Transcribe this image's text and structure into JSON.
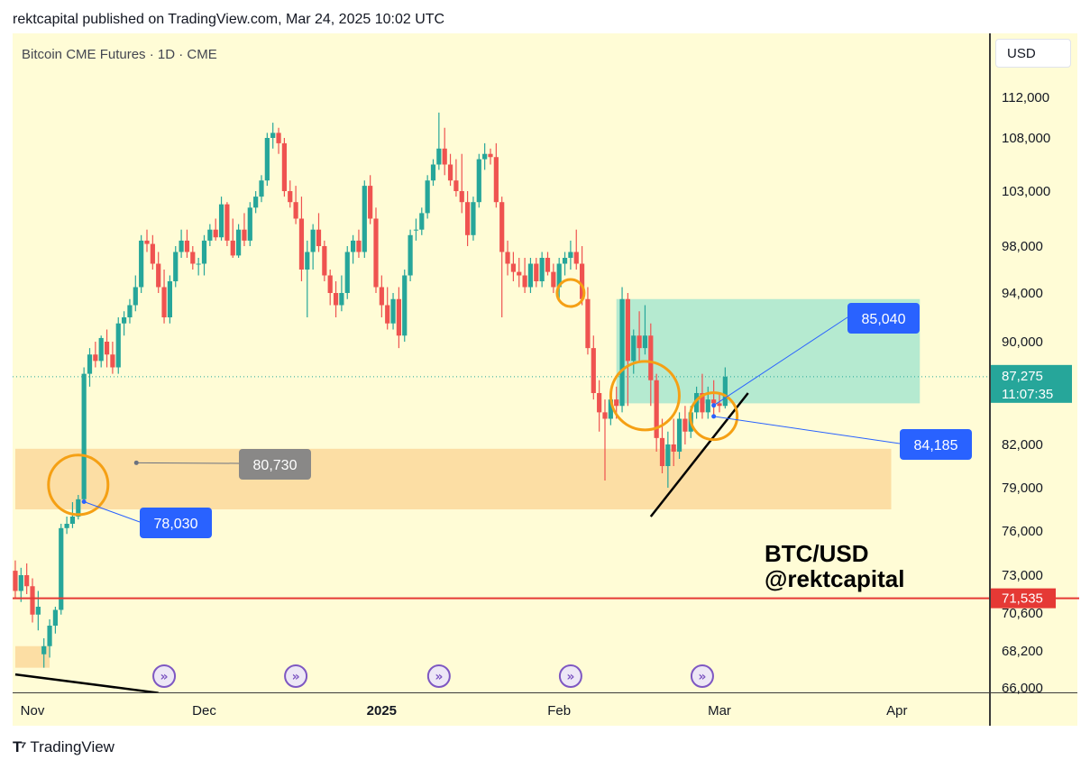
{
  "header": {
    "text": "rektcapital published on TradingView.com, Mar 24, 2025 10:02 UTC"
  },
  "symbol_title": "Bitcoin CME Futures · 1D · CME",
  "currency": "USD",
  "footer": {
    "logo_text": "TradingView"
  },
  "watermark": {
    "line1": "BTC/USD",
    "line2": "@rektcapital"
  },
  "colors": {
    "background": "#fffcd6",
    "up": "#26a69a",
    "down": "#ef5350",
    "support_zone": "#fcd89b",
    "target_zone": "#a8e6cf",
    "circle": "#f5a014",
    "label_blue": "#2962ff",
    "red_line": "#e53935"
  },
  "chart_data": {
    "type": "candlestick",
    "title": "Bitcoin CME Futures · 1D · CME",
    "ylabel": "USD",
    "y_ticks": [
      112000,
      108000,
      103000,
      98000,
      94000,
      90000,
      82000,
      79000,
      76000,
      73000,
      70600,
      68200,
      66000
    ],
    "x_ticks": [
      {
        "label": "Nov",
        "day": 0,
        "bold": false
      },
      {
        "label": "Dec",
        "day": 30,
        "bold": false
      },
      {
        "label": "2025",
        "day": 61,
        "bold": true
      },
      {
        "label": "Feb",
        "day": 92,
        "bold": false
      },
      {
        "label": "Mar",
        "day": 120,
        "bold": false
      },
      {
        "label": "Apr",
        "day": 151,
        "bold": false
      }
    ],
    "ohlc": [
      [
        -3,
        73300,
        74000,
        71500,
        72000
      ],
      [
        -2,
        72000,
        73500,
        71300,
        73000
      ],
      [
        -1,
        73000,
        73800,
        71800,
        72300
      ],
      [
        0,
        72300,
        72800,
        70000,
        70500
      ],
      [
        1,
        70500,
        72000,
        69500,
        71000
      ],
      [
        2,
        68000,
        69000,
        67200,
        68500
      ],
      [
        3,
        68500,
        70200,
        67800,
        69800
      ],
      [
        4,
        69800,
        71000,
        69300,
        70800
      ],
      [
        5,
        70800,
        76500,
        70500,
        76200
      ],
      [
        6,
        76200,
        77000,
        75800,
        76500
      ],
      [
        7,
        76500,
        78000,
        76200,
        77000
      ],
      [
        8,
        77000,
        78500,
        76800,
        78200
      ],
      [
        9,
        78200,
        88000,
        78000,
        87500
      ],
      [
        10,
        87500,
        89500,
        86500,
        89000
      ],
      [
        11,
        89000,
        90000,
        88000,
        88500
      ],
      [
        12,
        88500,
        90500,
        88000,
        90300
      ],
      [
        13,
        90000,
        91000,
        88000,
        89000
      ],
      [
        14,
        89000,
        90000,
        87500,
        88000
      ],
      [
        15,
        88000,
        92000,
        87500,
        91500
      ],
      [
        16,
        91500,
        92500,
        90500,
        92000
      ],
      [
        17,
        92000,
        93500,
        91500,
        93000
      ],
      [
        18,
        93000,
        95500,
        92500,
        94500
      ],
      [
        19,
        94500,
        99000,
        94000,
        98500
      ],
      [
        20,
        98500,
        99500,
        97500,
        98200
      ],
      [
        21,
        98200,
        99000,
        96000,
        96500
      ],
      [
        22,
        96500,
        97500,
        94000,
        94500
      ],
      [
        23,
        94500,
        96000,
        91500,
        92000
      ],
      [
        24,
        92000,
        95500,
        91500,
        95000
      ],
      [
        25,
        95000,
        98000,
        94500,
        97500
      ],
      [
        26,
        97500,
        99500,
        97000,
        98500
      ],
      [
        27,
        98500,
        99500,
        97000,
        97500
      ],
      [
        28,
        97500,
        98000,
        96000,
        96500
      ],
      [
        29,
        96500,
        97000,
        95500,
        96500
      ],
      [
        30,
        96500,
        99000,
        95500,
        98500
      ],
      [
        31,
        98500,
        100000,
        98000,
        99500
      ],
      [
        32,
        99500,
        100500,
        98500,
        98800
      ],
      [
        33,
        98800,
        102500,
        98500,
        101800
      ],
      [
        34,
        101800,
        102000,
        98000,
        98500
      ],
      [
        35,
        98500,
        100500,
        97000,
        97200
      ],
      [
        36,
        97200,
        100000,
        97000,
        99500
      ],
      [
        37,
        99500,
        101000,
        98000,
        98500
      ],
      [
        38,
        98500,
        102000,
        98000,
        101500
      ],
      [
        39,
        101500,
        103000,
        101000,
        102500
      ],
      [
        40,
        102500,
        104500,
        102000,
        104000
      ],
      [
        41,
        104000,
        108500,
        103500,
        108000
      ],
      [
        42,
        108000,
        109500,
        107000,
        108500
      ],
      [
        43,
        108500,
        109000,
        106500,
        107500
      ],
      [
        44,
        107500,
        108000,
        102500,
        103000
      ],
      [
        45,
        103000,
        104000,
        101500,
        102000
      ],
      [
        46,
        102000,
        103500,
        100000,
        100500
      ],
      [
        47,
        100500,
        102500,
        95000,
        96000
      ],
      [
        48,
        96000,
        98500,
        92000,
        97500
      ],
      [
        49,
        97500,
        100000,
        96000,
        99500
      ],
      [
        50,
        99500,
        101000,
        97500,
        98000
      ],
      [
        51,
        98000,
        98500,
        95000,
        95500
      ],
      [
        52,
        95500,
        96000,
        93000,
        94000
      ],
      [
        53,
        94000,
        95000,
        92000,
        93000
      ],
      [
        54,
        93000,
        95500,
        92500,
        94000
      ],
      [
        55,
        94000,
        98000,
        93500,
        97500
      ],
      [
        56,
        97500,
        99000,
        96500,
        98500
      ],
      [
        57,
        98500,
        99500,
        97000,
        97500
      ],
      [
        58,
        97500,
        104000,
        97000,
        103500
      ],
      [
        59,
        103500,
        104500,
        100000,
        100500
      ],
      [
        60,
        100500,
        101500,
        94000,
        94500
      ],
      [
        61,
        94500,
        95500,
        92000,
        93000
      ],
      [
        62,
        93000,
        94500,
        91000,
        91500
      ],
      [
        63,
        91500,
        94000,
        91000,
        93500
      ],
      [
        64,
        93500,
        94500,
        89500,
        90500
      ],
      [
        65,
        90500,
        96000,
        90000,
        95500
      ],
      [
        66,
        95500,
        99500,
        95000,
        99000
      ],
      [
        67,
        99500,
        100500,
        98500,
        99500
      ],
      [
        68,
        99500,
        101500,
        99000,
        101000
      ],
      [
        69,
        101000,
        104500,
        100500,
        104000
      ],
      [
        70,
        104000,
        106000,
        103500,
        105500
      ],
      [
        71,
        105500,
        110500,
        105000,
        107000
      ],
      [
        72,
        107000,
        109000,
        104500,
        105500
      ],
      [
        73,
        105500,
        106500,
        103500,
        104000
      ],
      [
        74,
        104000,
        106000,
        102500,
        103000
      ],
      [
        75,
        103000,
        106500,
        101000,
        102000
      ],
      [
        76,
        102000,
        103000,
        98000,
        99000
      ],
      [
        77,
        99000,
        102500,
        98500,
        102000
      ],
      [
        78,
        102000,
        106500,
        101500,
        106000
      ],
      [
        79,
        106000,
        107500,
        105000,
        106500
      ],
      [
        80,
        106500,
        107000,
        105500,
        106200
      ],
      [
        81,
        106200,
        107500,
        101500,
        102000
      ],
      [
        82,
        102000,
        102500,
        92000,
        97500
      ],
      [
        83,
        97500,
        98500,
        95500,
        96500
      ],
      [
        84,
        96500,
        97500,
        95000,
        95800
      ],
      [
        85,
        95800,
        97000,
        94500,
        95500
      ],
      [
        86,
        95500,
        97000,
        94000,
        94500
      ],
      [
        87,
        94500,
        97000,
        94000,
        96500
      ],
      [
        88,
        96500,
        97000,
        94500,
        95000
      ],
      [
        89,
        95000,
        97500,
        94500,
        97000
      ],
      [
        90,
        97000,
        97500,
        95500,
        95800
      ],
      [
        91,
        95800,
        96500,
        94000,
        94500
      ],
      [
        92,
        94500,
        97000,
        93500,
        96500
      ],
      [
        93,
        96500,
        97500,
        95500,
        97000
      ],
      [
        94,
        97000,
        98500,
        96000,
        97500
      ],
      [
        95,
        97500,
        99500,
        96000,
        96500
      ],
      [
        96,
        96500,
        98000,
        93000,
        93500
      ],
      [
        97,
        93500,
        94500,
        89000,
        89500
      ],
      [
        98,
        89500,
        90500,
        85500,
        86000
      ],
      [
        99,
        86000,
        87000,
        83000,
        84500
      ],
      [
        100,
        84500,
        85500,
        79500,
        84000
      ],
      [
        101,
        84000,
        86000,
        83500,
        85500
      ],
      [
        102,
        85500,
        86500,
        84000,
        85000
      ],
      [
        103,
        85000,
        94500,
        84500,
        93500
      ],
      [
        104,
        93500,
        94000,
        85000,
        88500
      ],
      [
        105,
        88500,
        91000,
        87500,
        90500
      ],
      [
        106,
        90500,
        92500,
        88500,
        89500
      ],
      [
        107,
        89500,
        93000,
        89000,
        90500
      ],
      [
        108,
        90500,
        91500,
        85000,
        87000
      ],
      [
        109,
        87000,
        87500,
        81500,
        82500
      ],
      [
        110,
        82500,
        84000,
        80000,
        80500
      ],
      [
        111,
        80500,
        83000,
        79000,
        82000
      ],
      [
        112,
        82000,
        84000,
        80500,
        81500
      ],
      [
        113,
        81500,
        84500,
        81000,
        84000
      ],
      [
        114,
        84000,
        85000,
        82000,
        83000
      ],
      [
        115,
        83000,
        85000,
        82500,
        84500
      ],
      [
        116,
        84500,
        86500,
        84000,
        86000
      ],
      [
        117,
        86000,
        87500,
        84000,
        84500
      ],
      [
        118,
        84500,
        86500,
        84000,
        85500
      ],
      [
        119,
        85500,
        87000,
        84200,
        85200
      ],
      [
        120,
        85200,
        86000,
        84500,
        85000
      ],
      [
        121,
        85000,
        88000,
        84800,
        87275
      ]
    ],
    "support_zone": {
      "from_day": -3,
      "to_day": 150,
      "low": 77500,
      "high": 81700
    },
    "lower_zone": {
      "from_day": -3,
      "to_day": 3,
      "low": 67200,
      "high": 68500
    },
    "target_zone": {
      "from_day": 102,
      "to_day": 155,
      "low": 85200,
      "high": 93500
    },
    "horizontal_lines": [
      {
        "price": 71535,
        "color": "#e53935"
      }
    ],
    "current_price": {
      "price": 87275,
      "countdown": "11:07:35"
    },
    "price_labels": [
      {
        "price": 71535,
        "text": "71,535",
        "color": "#e53935"
      }
    ],
    "callouts": [
      {
        "text": "80,730",
        "anchor_day": 15,
        "anchor_price": 80730,
        "style": "gray"
      },
      {
        "text": "78,030",
        "anchor_day": 9,
        "anchor_price": 78030,
        "style": "blue"
      },
      {
        "text": "85,040",
        "anchor_day": 119,
        "anchor_price": 85040,
        "style": "blue"
      },
      {
        "text": "84,185",
        "anchor_day": 119,
        "anchor_price": 84185,
        "style": "blue"
      }
    ],
    "circles": [
      {
        "day": 8,
        "price": 79200
      },
      {
        "day": 94,
        "price": 94000
      },
      {
        "day": 107,
        "price": 85800
      },
      {
        "day": 119,
        "price": 84200
      }
    ],
    "trendlines": [
      {
        "from": [
          108,
          77000
        ],
        "to": [
          125,
          86000
        ]
      },
      {
        "from": [
          -3,
          66800
        ],
        "to": [
          22,
          65700
        ]
      }
    ],
    "event_markers": [
      23,
      46,
      71,
      94,
      117
    ]
  }
}
